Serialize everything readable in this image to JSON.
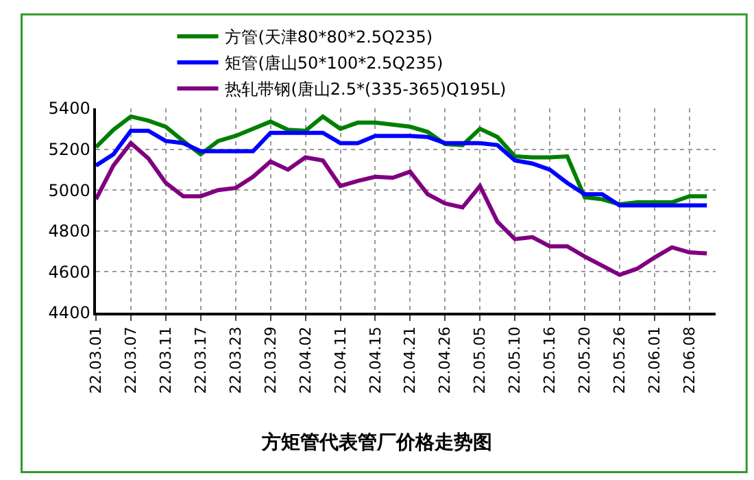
{
  "chart_data": {
    "type": "line",
    "title": "方矩管代表管厂价格走势图",
    "categories": [
      "22.03.01",
      null,
      "22.03.07",
      null,
      "22.03.11",
      null,
      "22.03.17",
      null,
      "22.03.23",
      null,
      "22.03.29",
      null,
      "22.04.02",
      null,
      "22.04.11",
      null,
      "22.04.15",
      null,
      "22.04.21",
      null,
      "22.04.26",
      null,
      "22.05.05",
      null,
      "22.05.10",
      null,
      "22.05.16",
      null,
      "22.05.20",
      null,
      "22.05.26",
      null,
      "22.06.01",
      null,
      "22.06.08",
      null
    ],
    "series": [
      {
        "name": "方管(天津80*80*2.5Q235)",
        "color": "#008000",
        "values": [
          5210,
          5295,
          5360,
          5340,
          5310,
          5240,
          5175,
          5240,
          5265,
          5300,
          5335,
          5295,
          5290,
          5360,
          5300,
          5330,
          5330,
          5320,
          5310,
          5285,
          5225,
          5220,
          5300,
          5260,
          5165,
          5160,
          5160,
          5165,
          4965,
          4955,
          4930,
          4940,
          4940,
          4940,
          4970,
          4970
        ]
      },
      {
        "name": "矩管(唐山50*100*2.5Q235)",
        "color": "#0000ff",
        "values": [
          5120,
          5175,
          5290,
          5290,
          5240,
          5230,
          5190,
          5190,
          5190,
          5190,
          5280,
          5280,
          5280,
          5280,
          5230,
          5230,
          5265,
          5265,
          5265,
          5260,
          5230,
          5230,
          5230,
          5220,
          5145,
          5130,
          5100,
          5035,
          4980,
          4980,
          4925,
          4925,
          4925,
          4925,
          4925,
          4925
        ]
      },
      {
        "name": "热轧带钢(唐山2.5*(335-365)Q195L)",
        "color": "#800080",
        "values": [
          4955,
          5120,
          5230,
          5155,
          5035,
          4970,
          4970,
          5000,
          5010,
          5065,
          5140,
          5100,
          5160,
          5145,
          5020,
          5045,
          5065,
          5060,
          5090,
          4980,
          4935,
          4915,
          5020,
          4845,
          4760,
          4770,
          4725,
          4725,
          4675,
          4630,
          4585,
          4615,
          4670,
          4720,
          4695,
          4690
        ]
      }
    ],
    "ylim": [
      4400,
      5400
    ],
    "yticks": [
      4400,
      4600,
      4800,
      5000,
      5200,
      5400
    ],
    "grid": true,
    "legend": "top",
    "line_style": "solid",
    "marker": "none"
  }
}
